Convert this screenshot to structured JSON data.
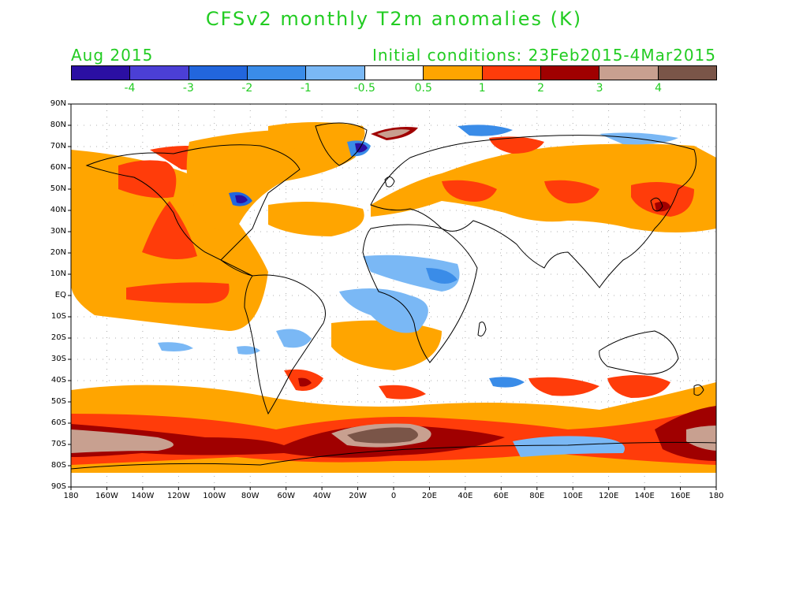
{
  "title": "CFSv2 monthly T2m anomalies (K)",
  "subtitle_left": "Aug 2015",
  "subtitle_right": "Initial conditions: 23Feb2015-4Mar2015",
  "colorbar": {
    "colors": [
      "#2b0fa3",
      "#4b3fd6",
      "#2266dd",
      "#3a8ce8",
      "#7ab8f5",
      "#ffffff",
      "#ffa500",
      "#ff3c0a",
      "#a00000",
      "#c8a090",
      "#7a5548"
    ],
    "tick_labels": [
      "-4",
      "-3",
      "-2",
      "-1",
      "-0.5",
      "0.5",
      "1",
      "2",
      "3",
      "4"
    ]
  },
  "map": {
    "lat_labels": [
      "90N",
      "80N",
      "70N",
      "60N",
      "50N",
      "40N",
      "30N",
      "20N",
      "10N",
      "EQ",
      "10S",
      "20S",
      "30S",
      "40S",
      "50S",
      "60S",
      "70S",
      "80S",
      "90S"
    ],
    "lon_labels": [
      "180",
      "160W",
      "140W",
      "120W",
      "100W",
      "80W",
      "60W",
      "40W",
      "20W",
      "0",
      "20E",
      "40E",
      "60E",
      "80E",
      "100E",
      "120E",
      "140E",
      "160E",
      "180"
    ],
    "colors": {
      "orange": "#ffa500",
      "red": "#ff3c0a",
      "darkred": "#a00000",
      "tan": "#c8a090",
      "brown": "#7a5548",
      "lightblue": "#7ab8f5",
      "blue": "#3a8ce8",
      "medblue": "#2266dd",
      "darkblue": "#2b0fa3"
    }
  }
}
